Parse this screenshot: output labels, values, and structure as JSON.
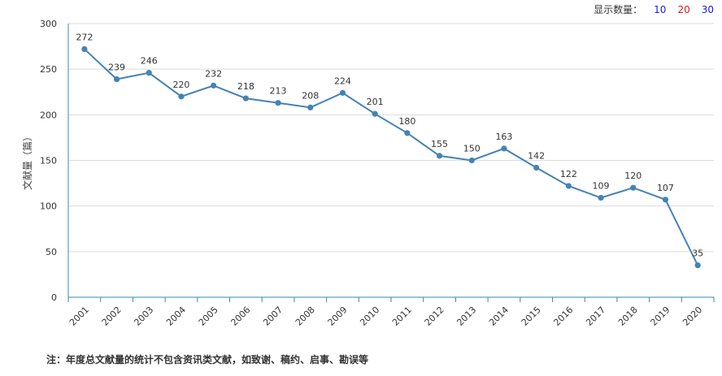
{
  "display_count": {
    "label": "显示数量：",
    "options": [
      "10",
      "20",
      "30"
    ]
  },
  "chart_data": {
    "type": "line",
    "title": "",
    "xlabel": "",
    "ylabel": "文献量（篇）",
    "categories": [
      "2001",
      "2002",
      "2003",
      "2004",
      "2005",
      "2006",
      "2007",
      "2008",
      "2009",
      "2010",
      "2011",
      "2012",
      "2013",
      "2014",
      "2015",
      "2016",
      "2017",
      "2018",
      "2019",
      "2020"
    ],
    "series": [
      {
        "values": [
          272,
          239,
          246,
          220,
          232,
          218,
          213,
          208,
          224,
          201,
          180,
          155,
          150,
          163,
          142,
          122,
          109,
          120,
          107,
          35
        ]
      }
    ],
    "ylim": [
      0,
      300
    ],
    "yticks": [
      0,
      50,
      100,
      150,
      200,
      250,
      300
    ],
    "grid": true,
    "line_color": "#4682b4",
    "axis_color": "#2e8bc0",
    "label_color": "#333333"
  },
  "footnote": "注：年度总文献量的统计不包含资讯类文献，如致谢、稿约、启事、勘误等"
}
